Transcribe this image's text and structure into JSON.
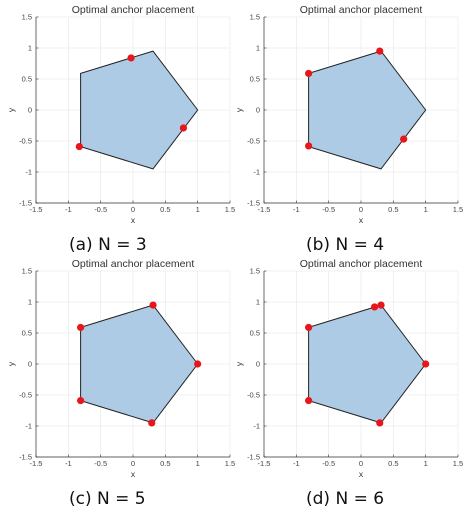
{
  "chart_data": [
    {
      "type": "scatter",
      "title": "Optimal anchor placement",
      "caption": "(a)  N = 3",
      "xlabel": "x",
      "ylabel": "y",
      "xlim": [
        -1.5,
        1.5
      ],
      "ylim": [
        -1.5,
        1.5
      ],
      "xticks": [
        -1.5,
        -1,
        -0.5,
        0,
        0.5,
        1,
        1.5
      ],
      "yticks": [
        -1.5,
        -1,
        -0.5,
        0,
        0.5,
        1,
        1.5
      ],
      "xtick_labels": [
        "-1.5",
        "-1",
        "-0.5",
        "0",
        "0.5",
        "1",
        "1.5"
      ],
      "ytick_labels": [
        "-1.5",
        "-1",
        "-0.5",
        "0",
        "0.5",
        "1",
        "1.5"
      ],
      "grid": true,
      "region": {
        "x": [
          1.0,
          0.31,
          -0.81,
          -0.81,
          0.31
        ],
        "y": [
          0.0,
          0.95,
          0.59,
          -0.59,
          -0.95
        ]
      },
      "anchors": {
        "x": [
          -0.03,
          0.78,
          -0.83
        ],
        "y": [
          0.84,
          -0.29,
          -0.59
        ]
      }
    },
    {
      "type": "scatter",
      "title": "Optimal anchor placement",
      "caption": "(b)  N = 4",
      "xlabel": "x",
      "ylabel": "y",
      "xlim": [
        -1.5,
        1.5
      ],
      "ylim": [
        -1.5,
        1.5
      ],
      "xticks": [
        -1.5,
        -1,
        -0.5,
        0,
        0.5,
        1,
        1.5
      ],
      "yticks": [
        -1.5,
        -1,
        -0.5,
        0,
        0.5,
        1,
        1.5
      ],
      "xtick_labels": [
        "-1.5",
        "-1",
        "-0.5",
        "0",
        "0.5",
        "1",
        "1.5"
      ],
      "ytick_labels": [
        "-1.5",
        "-1",
        "-0.5",
        "0",
        "0.5",
        "1",
        "1.5"
      ],
      "grid": true,
      "region": {
        "x": [
          1.0,
          0.31,
          -0.81,
          -0.81,
          0.31
        ],
        "y": [
          0.0,
          0.95,
          0.59,
          -0.59,
          -0.95
        ]
      },
      "anchors": {
        "x": [
          0.29,
          -0.81,
          -0.81,
          0.66
        ],
        "y": [
          0.95,
          0.59,
          -0.58,
          -0.47
        ]
      }
    },
    {
      "type": "scatter",
      "title": "Optimal anchor placement",
      "caption": "(c)  N = 5",
      "xlabel": "x",
      "ylabel": "y",
      "xlim": [
        -1.5,
        1.5
      ],
      "ylim": [
        -1.5,
        1.5
      ],
      "xticks": [
        -1.5,
        -1,
        -0.5,
        0,
        0.5,
        1,
        1.5
      ],
      "yticks": [
        -1.5,
        -1,
        -0.5,
        0,
        0.5,
        1,
        1.5
      ],
      "xtick_labels": [
        "-1.5",
        "-1",
        "-0.5",
        "0",
        "0.5",
        "1",
        "1.5"
      ],
      "ytick_labels": [
        "-1.5",
        "-1",
        "-0.5",
        "0",
        "0.5",
        "1",
        "1.5"
      ],
      "grid": true,
      "region": {
        "x": [
          1.0,
          0.31,
          -0.81,
          -0.81,
          0.31
        ],
        "y": [
          0.0,
          0.95,
          0.59,
          -0.59,
          -0.95
        ]
      },
      "anchors": {
        "x": [
          0.31,
          -0.81,
          -0.81,
          0.29,
          1.0
        ],
        "y": [
          0.95,
          0.59,
          -0.59,
          -0.95,
          0.0
        ]
      }
    },
    {
      "type": "scatter",
      "title": "Optimal anchor placement",
      "caption": "(d)  N = 6",
      "xlabel": "x",
      "ylabel": "y",
      "xlim": [
        -1.5,
        1.5
      ],
      "ylim": [
        -1.5,
        1.5
      ],
      "xticks": [
        -1.5,
        -1,
        -0.5,
        0,
        0.5,
        1,
        1.5
      ],
      "yticks": [
        -1.5,
        -1,
        -0.5,
        0,
        0.5,
        1,
        1.5
      ],
      "xtick_labels": [
        "-1.5",
        "-1",
        "-0.5",
        "0",
        "0.5",
        "1",
        "1.5"
      ],
      "ytick_labels": [
        "-1.5",
        "-1",
        "-0.5",
        "0",
        "0.5",
        "1",
        "1.5"
      ],
      "grid": true,
      "region": {
        "x": [
          1.0,
          0.31,
          -0.81,
          -0.81,
          0.31
        ],
        "y": [
          0.0,
          0.95,
          0.59,
          -0.59,
          -0.95
        ]
      },
      "anchors": {
        "x": [
          0.21,
          0.31,
          -0.81,
          -0.81,
          0.29,
          1.0
        ],
        "y": [
          0.92,
          0.95,
          0.59,
          -0.59,
          -0.95,
          0.0
        ]
      }
    }
  ],
  "colors": {
    "region_fill": "#aecbe6",
    "region_edge": "#222222",
    "anchor": "#e8161b",
    "grid": "#e6e6e6",
    "axis": "#333333"
  }
}
